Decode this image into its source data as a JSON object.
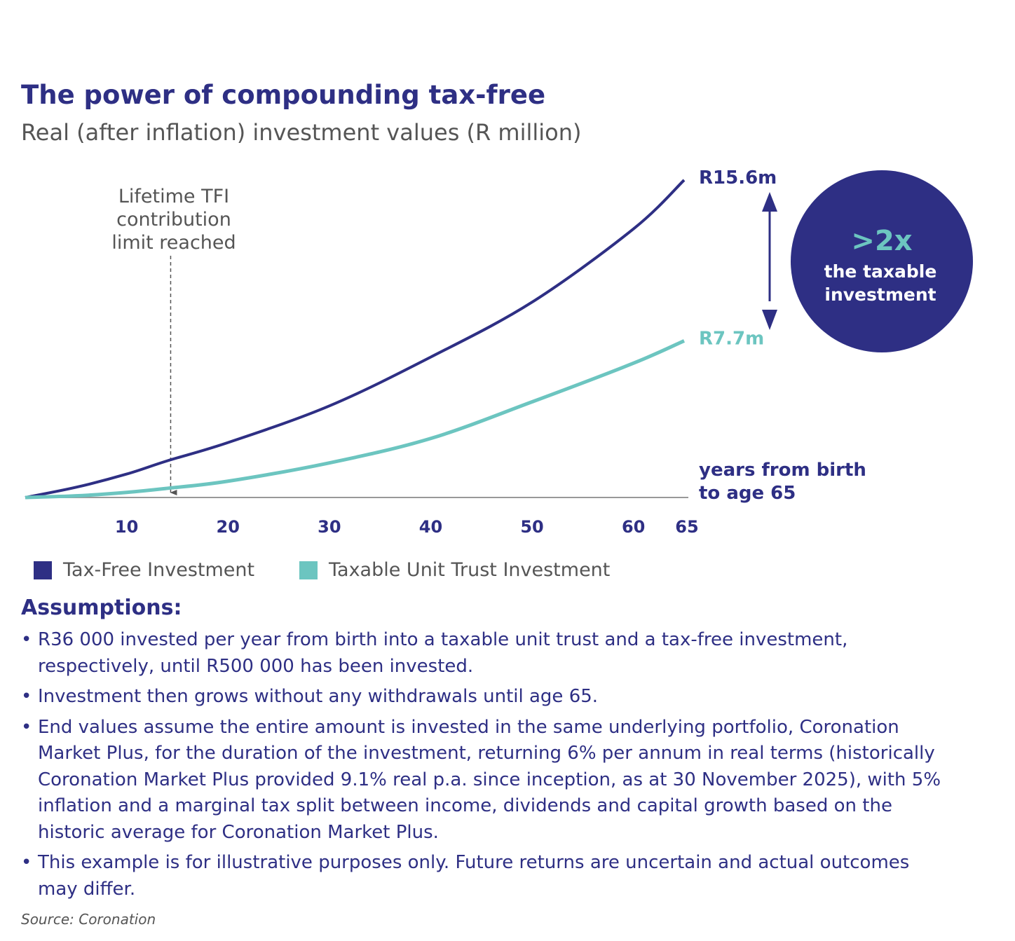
{
  "title": "The power of compounding tax-free",
  "subtitle": "Real (after inflation) investment values (R million)",
  "chart_data": {
    "type": "line",
    "title": "The power of compounding tax-free",
    "ylabel": "Real (after inflation) investment values (R million)",
    "xlabel": "years from birth to age 65",
    "xlabel_lines": [
      "years from birth",
      "to age 65"
    ],
    "x_ticks": [
      10,
      20,
      30,
      40,
      50,
      60,
      65
    ],
    "xlim": [
      0,
      65
    ],
    "ylim": [
      0,
      15.6
    ],
    "grid": false,
    "legend_placement": "bottom-left",
    "x": [
      0,
      5,
      10,
      14,
      20,
      30,
      40,
      50,
      60,
      65
    ],
    "series": [
      {
        "name": "Tax-Free Investment",
        "color": "#2e2f84",
        "values": [
          0,
          0.5,
          1.15,
          1.8,
          2.7,
          4.5,
          6.9,
          9.6,
          13.2,
          15.6
        ],
        "end_label": "R15.6m"
      },
      {
        "name": "Taxable Unit Trust Investment",
        "color": "#6cc5c0",
        "values": [
          0,
          0.08,
          0.25,
          0.45,
          0.8,
          1.7,
          2.9,
          4.7,
          6.6,
          7.7
        ],
        "end_label": "R7.7m"
      }
    ],
    "annotation": {
      "x": 14,
      "lines": [
        "Lifetime TFI",
        "contribution",
        "limit reached"
      ]
    },
    "callout": {
      "big": ">2x",
      "lines": [
        "the taxable",
        "investment"
      ]
    }
  },
  "assumptions": {
    "heading": "Assumptions:",
    "items": [
      "R36 000 invested per year from birth into a taxable unit trust and a tax-free investment, respectively, until R500 000 has been invested.",
      "Investment then grows without any withdrawals until age 65.",
      "End values assume the entire amount is invested in the same underlying portfolio, Coronation Market Plus, for the duration of the investment, returning 6% per annum in real terms (historically Coronation Market Plus provided 9.1% real p.a. since inception, as at 30 November 2025), with 5% inflation and a marginal tax split between income, dividends and capital growth based on the historic average for Coronation Market Plus.",
      "This example is for illustrative purposes only. Future returns are uncertain and actual outcomes may differ."
    ]
  },
  "source": "Source: Coronation"
}
